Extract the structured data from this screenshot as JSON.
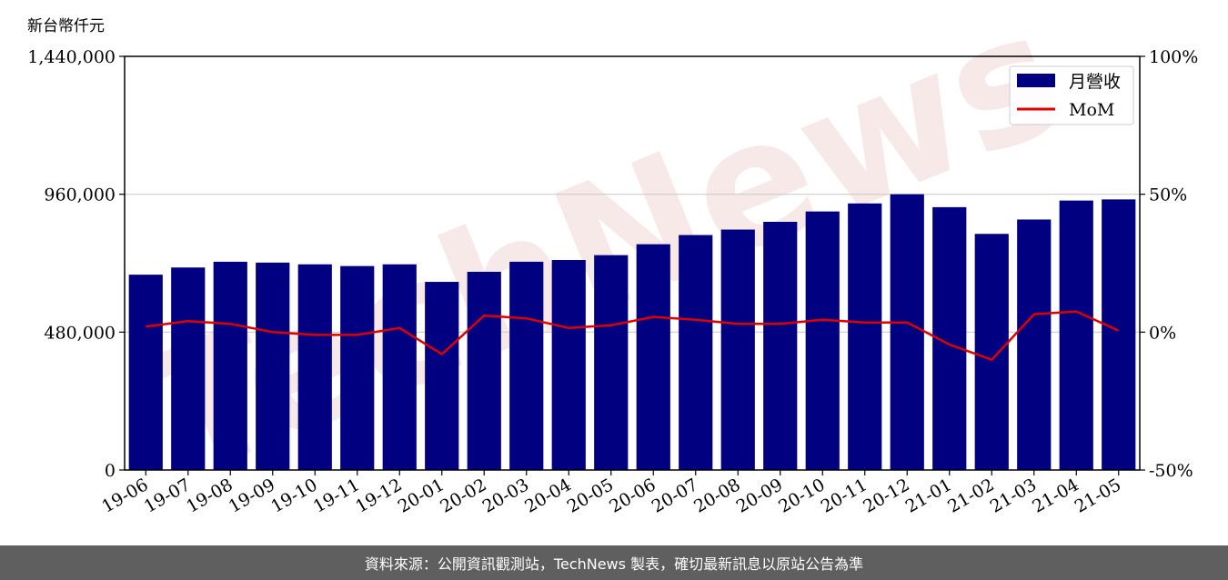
{
  "unit_label": "新台幣仟元",
  "watermark": "TechNews",
  "footer_text": "資料來源：公開資訊觀測站，TechNews 製表，確切最新訊息以原站公告為準",
  "colors": {
    "bar": "#000080",
    "line": "#e00000",
    "grid": "#cccccc",
    "footer_bg": "#5f5f5f",
    "watermark": "#f3d7d7"
  },
  "chart_data": {
    "type": "bar",
    "title": "",
    "xlabel": "",
    "ylabel": "新台幣仟元",
    "categories": [
      "19-06",
      "19-07",
      "19-08",
      "19-09",
      "19-10",
      "19-11",
      "19-12",
      "20-01",
      "20-02",
      "20-03",
      "20-04",
      "20-05",
      "20-06",
      "20-07",
      "20-08",
      "20-09",
      "20-10",
      "20-11",
      "20-12",
      "21-01",
      "21-02",
      "21-03",
      "21-04",
      "21-05"
    ],
    "series": [
      {
        "name": "月營收",
        "axis": "left",
        "kind": "bar",
        "values": [
          680000,
          705000,
          725000,
          722000,
          716000,
          710000,
          716000,
          655000,
          690000,
          725000,
          731000,
          748000,
          786000,
          818000,
          837000,
          864000,
          900000,
          928000,
          960000,
          915000,
          822000,
          872000,
          938000,
          942000
        ]
      },
      {
        "name": "MoM",
        "axis": "right",
        "kind": "line",
        "unit": "%",
        "values": [
          2,
          4,
          3,
          0,
          -1,
          -1,
          1.5,
          -8,
          6,
          5,
          1.5,
          2.5,
          5.5,
          4.5,
          3,
          3,
          4.5,
          3.5,
          3.5,
          -4.5,
          -10,
          6.5,
          7.5,
          0.5
        ]
      }
    ],
    "left_axis": {
      "ylim": [
        0,
        1440000
      ],
      "ticks": [
        "0",
        "480,000",
        "960,000",
        "1,440,000"
      ],
      "tick_values": [
        0,
        480000,
        960000,
        1440000
      ]
    },
    "right_axis": {
      "ylim": [
        -50,
        100
      ],
      "ticks": [
        "-50%",
        "0%",
        "50%",
        "100%"
      ],
      "tick_values": [
        -50,
        0,
        50,
        100
      ]
    },
    "grid": "horizontal",
    "legend": {
      "position": "top-right",
      "entries": [
        "月營收",
        "MoM"
      ]
    }
  }
}
